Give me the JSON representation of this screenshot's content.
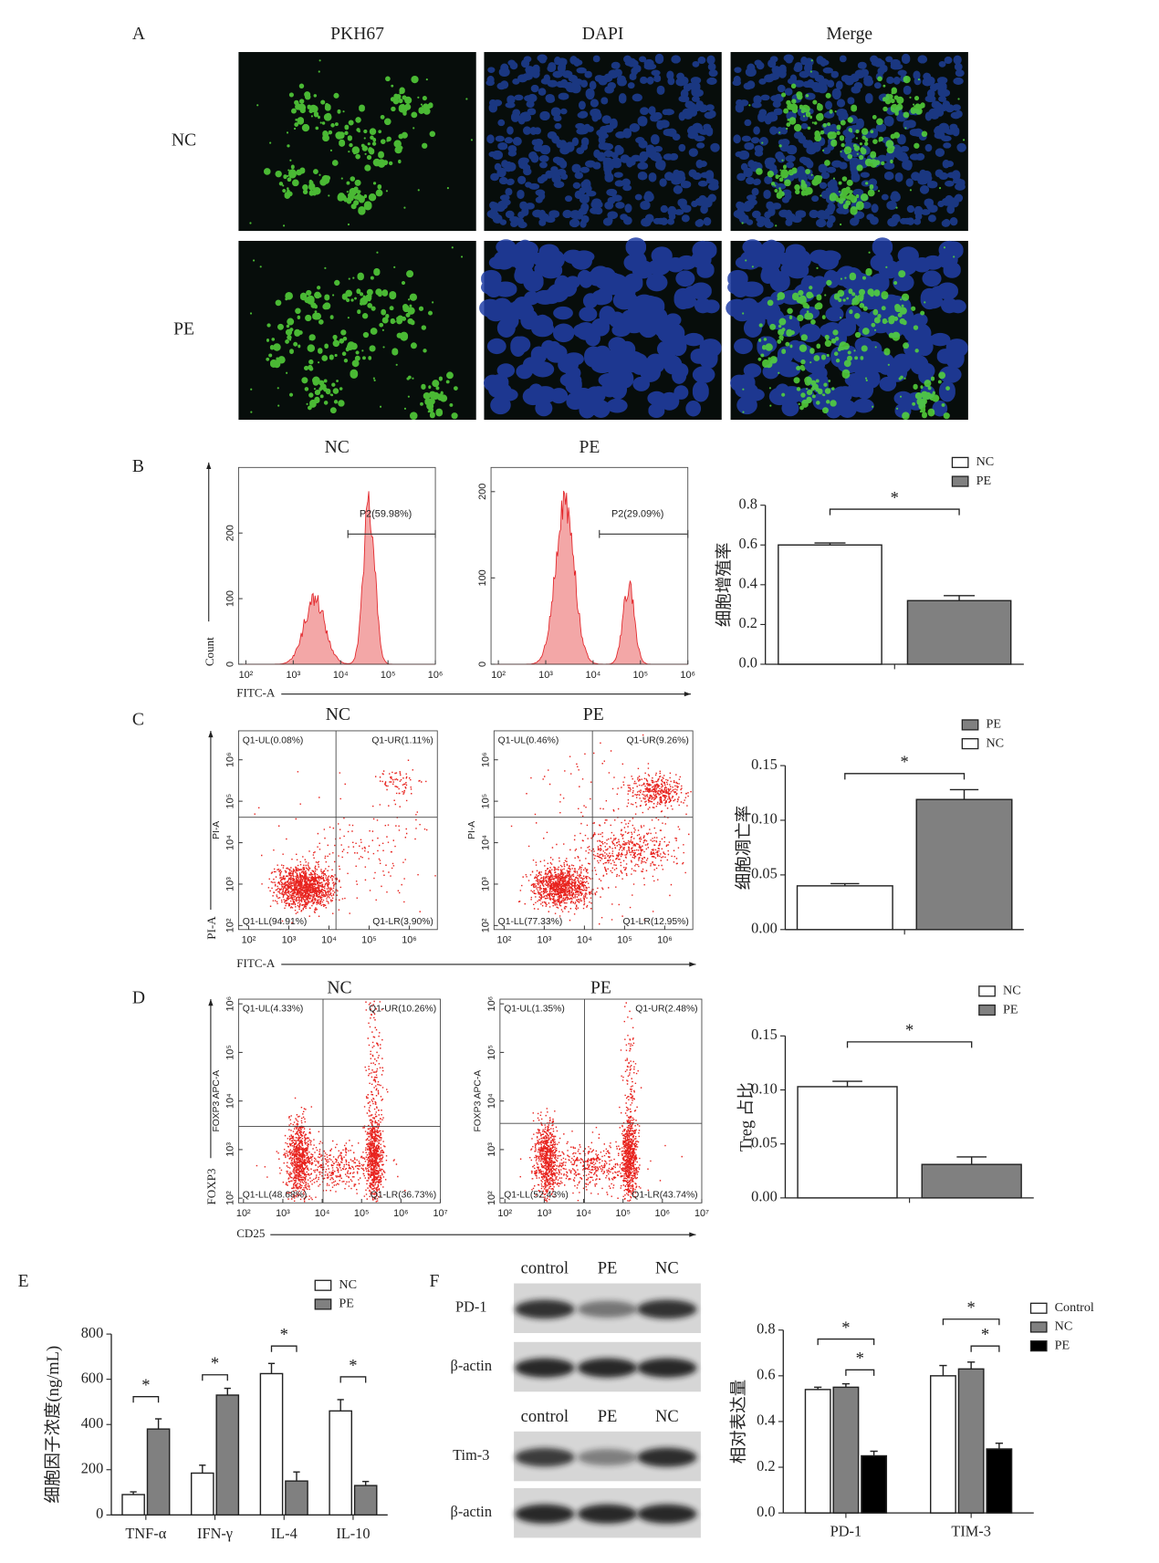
{
  "figure": {
    "panel_labels": [
      "A",
      "B",
      "C",
      "D",
      "E",
      "F"
    ],
    "microscopy": {
      "columns": [
        "PKH67",
        "DAPI",
        "Merge"
      ],
      "rows": [
        "NC",
        "PE"
      ]
    },
    "row_axes": [
      {
        "y": "Count",
        "x": "FITC-A"
      },
      {
        "y": "PI-A",
        "x": "FITC-A"
      },
      {
        "y": "FOXP3",
        "x": "CD25"
      }
    ],
    "western": {
      "lanes_top": [
        "control",
        "PE",
        "NC"
      ],
      "lanes_bottom": [
        "control",
        "PE",
        "NC"
      ],
      "rows": [
        "PD-1",
        "β-actin",
        "Tim-3",
        "β-actin"
      ]
    }
  },
  "chart_data": [
    {
      "type": "flow-histogram",
      "title": "NC",
      "gate": "P2(59.98%)",
      "xscale": "log",
      "xlim": [
        70,
        1000000
      ],
      "xticks": [
        {
          "value": 100,
          "label": "10²"
        },
        {
          "value": 1000,
          "label": "10³"
        },
        {
          "value": 10000,
          "label": "10⁴"
        },
        {
          "value": 100000,
          "label": "10⁵"
        },
        {
          "value": 1000000,
          "label": "10⁶"
        }
      ],
      "ylim": [
        0,
        300
      ],
      "yticks": [
        0,
        100,
        200
      ]
    },
    {
      "type": "flow-histogram",
      "title": "PE",
      "gate": "P2(29.09%)",
      "xscale": "log",
      "xlim": [
        70,
        1000000
      ],
      "xticks": [
        {
          "value": 100,
          "label": "10²"
        },
        {
          "value": 1000,
          "label": "10³"
        },
        {
          "value": 10000,
          "label": "10⁴"
        },
        {
          "value": 100000,
          "label": "10⁵"
        },
        {
          "value": 1000000,
          "label": "10⁶"
        }
      ],
      "ylim": [
        0,
        228
      ],
      "yticks": [
        0,
        100,
        200
      ]
    },
    {
      "type": "bar",
      "ylabel": "细胞增殖率",
      "categories": [
        null,
        null
      ],
      "series": [
        {
          "name": "NC",
          "color": "#ffffff",
          "values": [
            0.6,
            null
          ],
          "errors": [
            0.01,
            null
          ]
        },
        {
          "name": "PE",
          "color": "#808080",
          "values": [
            null,
            0.32
          ],
          "errors": [
            null,
            0.025
          ]
        }
      ],
      "ylim": [
        0,
        0.8
      ],
      "yticks": [
        {
          "value": 0,
          "label": "0.0"
        },
        0.2,
        0.4,
        0.6,
        0.8
      ],
      "significance": [
        "*"
      ]
    },
    {
      "type": "flow-dotplot",
      "title": "NC",
      "ylabel": "PI-A",
      "quadrants": [
        "Q1-UL(0.08%)",
        "Q1-UR(1.11%)",
        "Q1-LL(94.91%)",
        "Q1-LR(3.90%)"
      ],
      "xscale": "log",
      "yscale": "log",
      "xlim": [
        56,
        5000000
      ],
      "ylim": [
        80,
        5000000
      ],
      "xticks": [
        {
          "value": 100,
          "label": "10²"
        },
        {
          "value": 1000,
          "label": "10³"
        },
        {
          "value": 10000,
          "label": "10⁴"
        },
        {
          "value": 100000,
          "label": "10⁵"
        },
        {
          "value": 1000000,
          "label": "10⁶"
        }
      ],
      "yticks": [
        {
          "value": 100,
          "label": "10²"
        },
        {
          "value": 1000,
          "label": "10³"
        },
        {
          "value": 10000,
          "label": "10⁴"
        },
        {
          "value": 100000,
          "label": "10⁵"
        },
        {
          "value": 1000000,
          "label": "10⁶"
        }
      ]
    },
    {
      "type": "flow-dotplot",
      "title": "PE",
      "ylabel": "PI-A",
      "quadrants": [
        "Q1-UL(0.46%)",
        "Q1-UR(9.26%)",
        "Q1-LL(77.33%)",
        "Q1-LR(12.95%)"
      ],
      "xscale": "log",
      "yscale": "log",
      "xlim": [
        56,
        5000000
      ],
      "ylim": [
        80,
        5000000
      ],
      "xticks": [
        {
          "value": 100,
          "label": "10²"
        },
        {
          "value": 1000,
          "label": "10³"
        },
        {
          "value": 10000,
          "label": "10⁴"
        },
        {
          "value": 100000,
          "label": "10⁵"
        },
        {
          "value": 1000000,
          "label": "10⁶"
        }
      ],
      "yticks": [
        {
          "value": 100,
          "label": "10²"
        },
        {
          "value": 1000,
          "label": "10³"
        },
        {
          "value": 10000,
          "label": "10⁴"
        },
        {
          "value": 100000,
          "label": "10⁵"
        },
        {
          "value": 1000000,
          "label": "10⁶"
        }
      ]
    },
    {
      "type": "bar",
      "ylabel": "细胞凋亡率",
      "categories": [
        null,
        null
      ],
      "series": [
        {
          "name": "PE",
          "color": "#808080",
          "values": [
            null,
            0.119
          ],
          "errors": [
            null,
            0.009
          ]
        },
        {
          "name": "NC",
          "color": "#ffffff",
          "values": [
            0.04,
            null
          ],
          "errors": [
            0.002,
            null
          ]
        }
      ],
      "ylim": [
        0,
        0.15
      ],
      "yticks": [
        {
          "value": 0,
          "label": "0.00"
        },
        {
          "value": 0.05,
          "label": "0.05"
        },
        {
          "value": 0.1,
          "label": "0.10"
        },
        {
          "value": 0.15,
          "label": "0.15"
        }
      ],
      "significance": [
        "*"
      ]
    },
    {
      "type": "flow-dotplot",
      "title": "NC",
      "ylabel": "FOXP3 APC-A",
      "quadrants": [
        "Q1-UL(4.33%)",
        "Q1-UR(10.26%)",
        "Q1-LL(48.68%)",
        "Q1-LR(36.73%)"
      ],
      "xscale": "log",
      "yscale": "log",
      "xlim": [
        75,
        10000000
      ],
      "ylim": [
        80,
        1250000
      ],
      "xticks": [
        {
          "value": 100,
          "label": "10²"
        },
        {
          "value": 1000,
          "label": "10³"
        },
        {
          "value": 10000,
          "label": "10⁴"
        },
        {
          "value": 100000,
          "label": "10⁵"
        },
        {
          "value": 1000000,
          "label": "10⁶"
        },
        {
          "value": 10000000,
          "label": "10⁷"
        }
      ],
      "yticks": [
        {
          "value": 100,
          "label": "10²"
        },
        {
          "value": 1000,
          "label": "10³"
        },
        {
          "value": 10000,
          "label": "10⁴"
        },
        {
          "value": 100000,
          "label": "10⁵"
        },
        {
          "value": 1000000,
          "label": "10⁶"
        }
      ]
    },
    {
      "type": "flow-dotplot",
      "title": "PE",
      "ylabel": "FOXP3 APC-A",
      "quadrants": [
        "Q1-UL(1.35%)",
        "Q1-UR(2.48%)",
        "Q1-LL(52.43%)",
        "Q1-LR(43.74%)"
      ],
      "xscale": "log",
      "yscale": "log",
      "xlim": [
        75,
        10000000
      ],
      "ylim": [
        80,
        1250000
      ],
      "xticks": [
        {
          "value": 100,
          "label": "10²"
        },
        {
          "value": 1000,
          "label": "10³"
        },
        {
          "value": 10000,
          "label": "10⁴"
        },
        {
          "value": 100000,
          "label": "10⁵"
        },
        {
          "value": 1000000,
          "label": "10⁶"
        },
        {
          "value": 10000000,
          "label": "10⁷"
        }
      ],
      "yticks": [
        {
          "value": 100,
          "label": "10²"
        },
        {
          "value": 1000,
          "label": "10³"
        },
        {
          "value": 10000,
          "label": "10⁴"
        },
        {
          "value": 100000,
          "label": "10⁵"
        },
        {
          "value": 1000000,
          "label": "10⁶"
        }
      ]
    },
    {
      "type": "bar",
      "ylabel": "Treg 占比",
      "categories": [
        null,
        null
      ],
      "series": [
        {
          "name": "NC",
          "color": "#ffffff",
          "values": [
            0.103,
            null
          ],
          "errors": [
            0.005,
            null
          ]
        },
        {
          "name": "PE",
          "color": "#808080",
          "values": [
            null,
            0.031
          ],
          "errors": [
            null,
            0.007
          ]
        }
      ],
      "ylim": [
        0,
        0.15
      ],
      "yticks": [
        {
          "value": 0,
          "label": "0.00"
        },
        {
          "value": 0.05,
          "label": "0.05"
        },
        {
          "value": 0.1,
          "label": "0.10"
        },
        {
          "value": 0.15,
          "label": "0.15"
        }
      ],
      "significance": [
        "*"
      ]
    },
    {
      "type": "bar",
      "ylabel": "细胞因子浓度(ng/mL)",
      "categories": [
        "TNF-α",
        "IFN-γ",
        "IL-4",
        "IL-10"
      ],
      "series": [
        {
          "name": "NC",
          "color": "#ffffff",
          "values": [
            90,
            185,
            625,
            460
          ],
          "errors": [
            12,
            35,
            45,
            50
          ]
        },
        {
          "name": "PE",
          "color": "#808080",
          "values": [
            380,
            530,
            150,
            130
          ],
          "errors": [
            45,
            30,
            40,
            18
          ]
        }
      ],
      "ylim": [
        0,
        800
      ],
      "yticks": [
        0,
        200,
        400,
        600,
        800
      ],
      "significance": [
        "*",
        "*",
        "*",
        "*"
      ]
    },
    {
      "type": "bar",
      "ylabel": "相对表达量",
      "categories": [
        "PD-1",
        "TIM-3"
      ],
      "series": [
        {
          "name": "Control",
          "color": "#ffffff",
          "values": [
            0.54,
            0.6
          ],
          "errors": [
            0.01,
            0.045
          ]
        },
        {
          "name": "NC",
          "color": "#808080",
          "values": [
            0.55,
            0.63
          ],
          "errors": [
            0.015,
            0.03
          ]
        },
        {
          "name": "PE",
          "color": "#000000",
          "values": [
            0.25,
            0.28
          ],
          "errors": [
            0.02,
            0.025
          ]
        }
      ],
      "ylim": [
        0,
        0.8
      ],
      "yticks": [
        {
          "value": 0,
          "label": "0.0"
        },
        0.2,
        0.4,
        0.6,
        0.8
      ],
      "significance": [
        "*",
        "*",
        "*",
        "*"
      ]
    }
  ]
}
